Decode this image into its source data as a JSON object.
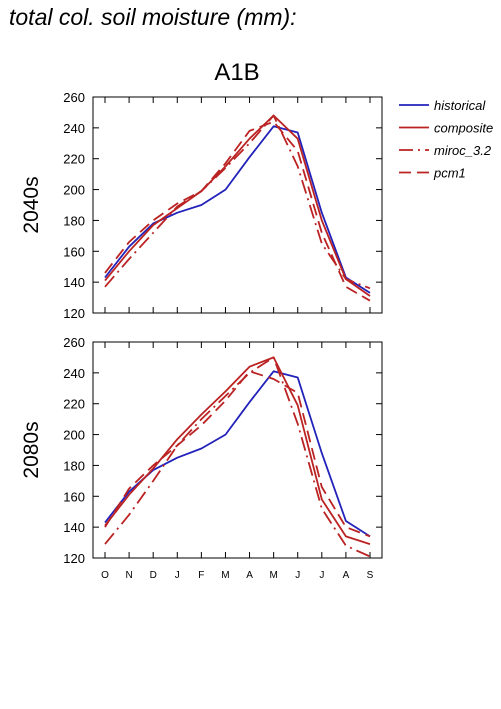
{
  "page_title": "total col. soil moisture (mm):",
  "chart_data": {
    "type": "line",
    "scenario": "A1B",
    "categories": [
      "O",
      "N",
      "D",
      "J",
      "F",
      "M",
      "A",
      "M",
      "J",
      "J",
      "A",
      "S"
    ],
    "ylim": [
      120,
      260
    ],
    "yticks": [
      120,
      140,
      160,
      180,
      200,
      220,
      240,
      260
    ],
    "legend_position": "right",
    "colors": {
      "historical": "#2222bb",
      "model": "#bb2222"
    },
    "legend": [
      {
        "name": "historical",
        "dash": "solid",
        "color": "#2222bb"
      },
      {
        "name": "composite",
        "dash": "solid",
        "color": "#bb2222"
      },
      {
        "name": "miroc_3.2",
        "dash": "dashdot",
        "color": "#bb2222"
      },
      {
        "name": "pcm1",
        "dash": "dashed",
        "color": "#bb2222"
      }
    ],
    "panels": [
      {
        "row_label": "2040s",
        "series": [
          {
            "name": "historical",
            "values": [
              143,
              163,
              178,
              185,
              190,
              200,
              221,
              241,
              237,
              185,
              143,
              133
            ]
          },
          {
            "name": "composite",
            "values": [
              141,
              160,
              177,
              188,
              199,
              215,
              233,
              248,
              233,
              180,
              142,
              131
            ]
          },
          {
            "name": "miroc_3.2",
            "values": [
              137,
              155,
              172,
              189,
              199,
              214,
              230,
              248,
              215,
              165,
              142,
              136
            ]
          },
          {
            "name": "pcm1",
            "values": [
              146,
              166,
              180,
              191,
              199,
              217,
              238,
              244,
              225,
              172,
              137,
              128
            ]
          }
        ]
      },
      {
        "row_label": "2080s",
        "series": [
          {
            "name": "historical",
            "values": [
              143,
              163,
              177,
              185,
              191,
              200,
              221,
              241,
              237,
              188,
              144,
              134
            ]
          },
          {
            "name": "composite",
            "values": [
              141,
              161,
              178,
              197,
              213,
              228,
              244,
              250,
              219,
              158,
              134,
              129
            ]
          },
          {
            "name": "miroc_3.2",
            "values": [
              129,
              148,
              170,
              193,
              210,
              225,
              240,
              250,
              207,
              152,
              128,
              121
            ]
          },
          {
            "name": "pcm1",
            "values": [
              140,
              165,
              180,
              193,
              206,
              222,
              241,
              236,
              227,
              166,
              140,
              134
            ]
          }
        ]
      }
    ]
  }
}
